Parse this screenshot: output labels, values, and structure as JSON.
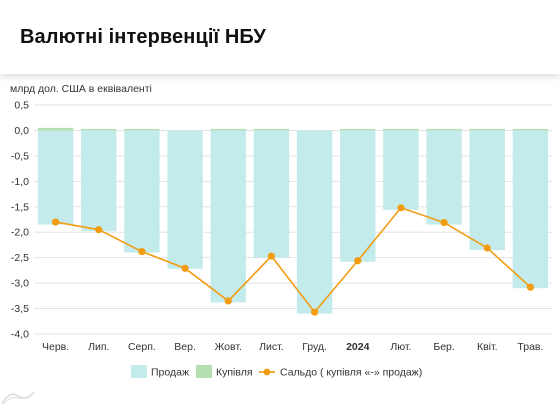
{
  "header": {
    "title": "Валютні інтервенції НБУ"
  },
  "chart_data": {
    "type": "bar",
    "title": "Валютні інтервенції НБУ",
    "ylabel": "млрд дол. США в еквіваленті",
    "xlabel": "",
    "categories": [
      "Черв.",
      "Лип.",
      "Серп.",
      "Вер.",
      "Жовт.",
      "Лист.",
      "Груд.",
      "2024",
      "Лют.",
      "Бер.",
      "Квіт.",
      "Трав."
    ],
    "bold_categories": [
      "2024"
    ],
    "ylim": [
      -4.0,
      0.5
    ],
    "yticks": [
      0.5,
      0.0,
      -0.5,
      -1.0,
      -1.5,
      -2.0,
      -2.5,
      -3.0,
      -3.5,
      -4.0
    ],
    "ytick_labels": [
      "0,5",
      "0,0",
      "-0,5",
      "-1,0",
      "-1,5",
      "-2,0",
      "-2,5",
      "-3,0",
      "-3,5",
      "-4,0"
    ],
    "grid": true,
    "legend_position": "bottom",
    "series": [
      {
        "name": "Продаж",
        "kind": "bar",
        "color": "#c3ebec",
        "values": [
          -1.85,
          -1.98,
          -2.4,
          -2.72,
          -3.38,
          -2.5,
          -3.6,
          -2.58,
          -1.56,
          -1.85,
          -2.35,
          -3.1
        ]
      },
      {
        "name": "Купівля",
        "kind": "bar",
        "color": "#b5dfb0",
        "values": [
          0.05,
          0.01,
          0.01,
          0.0,
          0.01,
          0.01,
          0.0,
          0.01,
          0.03,
          0.03,
          0.03,
          0.01
        ]
      },
      {
        "name": "Сальдо ( купівля «-» продаж)",
        "kind": "line",
        "color": "#f39c12",
        "values": [
          -1.8,
          -1.95,
          -2.38,
          -2.71,
          -3.35,
          -2.47,
          -3.57,
          -2.56,
          -1.52,
          -1.81,
          -2.31,
          -3.08
        ]
      }
    ]
  }
}
